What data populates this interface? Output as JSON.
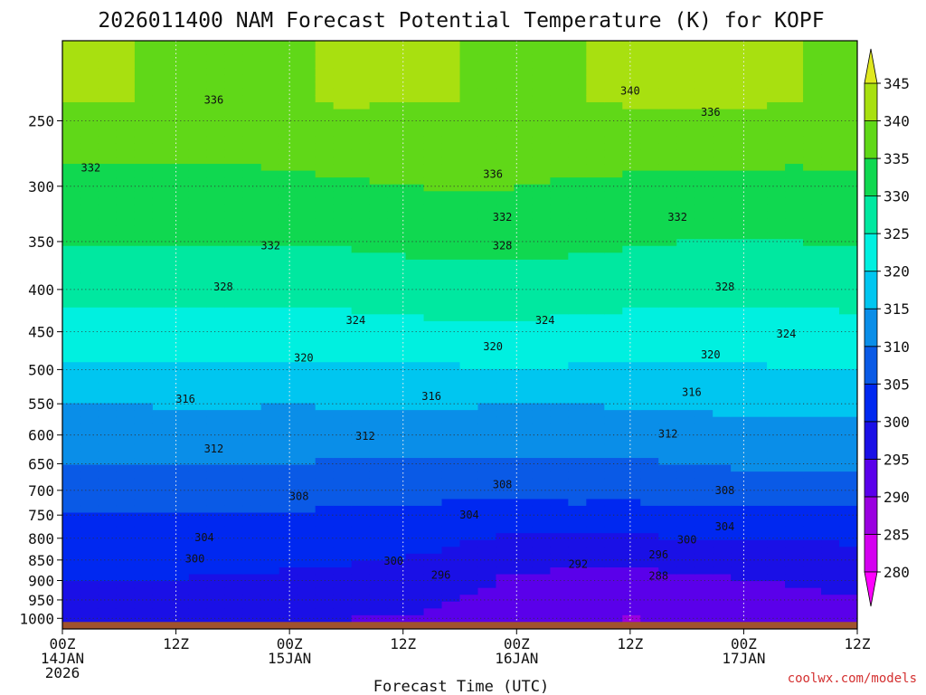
{
  "chart_data": {
    "type": "heatmap",
    "title": "2026011400 NAM Forecast Potential Temperature (K) for KOPF",
    "xlabel": "Forecast Time (UTC)",
    "ylabel": "",
    "variable": "Potential Temperature (K)",
    "y_axis": {
      "units": "hPa",
      "range": [
        1030,
        200
      ],
      "ticks": [
        250,
        300,
        350,
        400,
        450,
        500,
        550,
        600,
        650,
        700,
        750,
        800,
        850,
        900,
        950,
        1000
      ],
      "tick_labels": [
        "250",
        "300",
        "350",
        "400",
        "450",
        "500",
        "550",
        "600",
        "650",
        "700",
        "750",
        "800",
        "850",
        "900",
        "950",
        "1000"
      ]
    },
    "x_axis": {
      "units": "forecast hours",
      "range": [
        0,
        84
      ],
      "ticks": [
        0,
        12,
        24,
        36,
        48,
        60,
        72,
        84
      ],
      "tick_labels": [
        {
          "hour": 0,
          "lines": [
            "00Z",
            "14JAN",
            "2026"
          ]
        },
        {
          "hour": 12,
          "lines": [
            "12Z"
          ]
        },
        {
          "hour": 24,
          "lines": [
            "00Z",
            "15JAN"
          ]
        },
        {
          "hour": 36,
          "lines": [
            "12Z"
          ]
        },
        {
          "hour": 48,
          "lines": [
            "00Z",
            "16JAN"
          ]
        },
        {
          "hour": 60,
          "lines": [
            "12Z"
          ]
        },
        {
          "hour": 72,
          "lines": [
            "00Z",
            "17JAN"
          ]
        },
        {
          "hour": 84,
          "lines": [
            "12Z"
          ]
        }
      ]
    },
    "grid": true,
    "colorbar": {
      "levels": [
        280,
        285,
        290,
        295,
        300,
        305,
        310,
        315,
        320,
        325,
        330,
        335,
        340,
        345
      ],
      "tick_labels": [
        "280",
        "285",
        "290",
        "295",
        "300",
        "305",
        "310",
        "315",
        "320",
        "325",
        "330",
        "335",
        "340",
        "345"
      ],
      "band_colors": [
        "#ff00ff",
        "#d400f0",
        "#9a00e0",
        "#5a00ea",
        "#1a10e6",
        "#0028f0",
        "#0a5ae6",
        "#0a8ee8",
        "#00c6f0",
        "#00f0e0",
        "#00e8a0",
        "#10d850",
        "#60d818",
        "#a8e010",
        "#e0e820"
      ],
      "extend": "both"
    },
    "profile": {
      "pressure_levels": [
        1000,
        950,
        900,
        850,
        800,
        750,
        700,
        650,
        600,
        550,
        500,
        450,
        400,
        350,
        300,
        250
      ],
      "hours": [
        0,
        6,
        12,
        18,
        24,
        30,
        36,
        42,
        48,
        54,
        60,
        66,
        72,
        78,
        84
      ],
      "theta_K": [
        [
          297.5,
          297.0,
          296.5,
          296.0,
          295.5,
          295.0,
          295.0,
          294.0,
          292.5,
          291.5,
          290.0,
          290.5,
          291.5,
          293.0,
          294.0
        ],
        [
          298.5,
          298.5,
          298.0,
          297.5,
          297.0,
          296.5,
          296.0,
          295.0,
          293.0,
          292.0,
          291.0,
          291.5,
          292.5,
          294.0,
          295.0
        ],
        [
          300.0,
          300.0,
          300.0,
          299.5,
          299.0,
          298.5,
          298.0,
          296.5,
          294.0,
          293.5,
          293.0,
          294.0,
          295.0,
          295.5,
          296.0
        ],
        [
          301.0,
          301.0,
          301.0,
          301.0,
          301.0,
          300.5,
          300.0,
          298.5,
          296.5,
          296.5,
          296.5,
          297.0,
          297.5,
          298.0,
          298.5
        ],
        [
          303.0,
          303.0,
          303.0,
          303.0,
          303.0,
          302.5,
          302.0,
          300.5,
          299.0,
          299.0,
          299.5,
          300.0,
          300.0,
          300.5,
          300.5
        ],
        [
          305.0,
          305.0,
          305.0,
          305.0,
          304.5,
          304.0,
          304.0,
          303.5,
          302.5,
          303.0,
          303.0,
          303.5,
          303.5,
          304.0,
          304.0
        ],
        [
          307.5,
          307.5,
          307.5,
          307.5,
          307.5,
          307.0,
          306.5,
          306.0,
          306.5,
          307.0,
          306.5,
          307.5,
          308.0,
          308.0,
          308.0
        ],
        [
          310.5,
          310.5,
          310.5,
          310.5,
          310.0,
          309.5,
          309.5,
          309.0,
          309.5,
          309.5,
          309.5,
          310.0,
          310.5,
          311.0,
          311.0
        ],
        [
          312.5,
          312.5,
          312.5,
          312.5,
          312.0,
          312.0,
          312.0,
          312.0,
          312.5,
          312.0,
          312.5,
          312.5,
          313.0,
          313.0,
          313.0
        ],
        [
          315.0,
          315.0,
          315.5,
          315.5,
          315.0,
          315.5,
          315.5,
          315.5,
          315.0,
          315.0,
          315.5,
          316.0,
          316.0,
          316.0,
          316.0
        ],
        [
          319.0,
          319.0,
          319.0,
          319.0,
          319.0,
          319.0,
          319.0,
          319.5,
          320.0,
          319.5,
          319.5,
          319.5,
          319.5,
          320.0,
          320.0
        ],
        [
          323.0,
          323.0,
          323.0,
          323.0,
          323.0,
          323.0,
          323.5,
          324.0,
          324.0,
          323.5,
          323.0,
          322.5,
          322.5,
          323.0,
          323.5
        ],
        [
          327.0,
          327.0,
          327.0,
          327.0,
          327.0,
          327.0,
          327.5,
          328.0,
          328.0,
          327.5,
          327.0,
          326.5,
          326.5,
          326.5,
          327.0
        ],
        [
          330.5,
          330.5,
          330.5,
          330.5,
          330.5,
          330.5,
          331.0,
          331.5,
          331.5,
          331.0,
          330.5,
          330.0,
          330.0,
          330.0,
          330.5
        ],
        [
          333.0,
          333.0,
          333.5,
          333.5,
          334.0,
          334.5,
          335.0,
          335.5,
          335.0,
          334.5,
          334.0,
          333.5,
          333.5,
          333.5,
          334.0
        ],
        [
          338.5,
          338.5,
          338.0,
          338.0,
          338.5,
          339.0,
          339.0,
          339.0,
          338.5,
          338.5,
          339.0,
          339.0,
          339.0,
          338.5,
          338.5
        ]
      ]
    },
    "contour_labels": [
      {
        "text": "336",
        "hour": 16.0,
        "hPa": 236
      },
      {
        "text": "340",
        "hour": 60.0,
        "hPa": 230
      },
      {
        "text": "336",
        "hour": 68.5,
        "hPa": 244
      },
      {
        "text": "332",
        "hour": 3.0,
        "hPa": 285
      },
      {
        "text": "336",
        "hour": 45.5,
        "hPa": 290
      },
      {
        "text": "332",
        "hour": 46.5,
        "hPa": 327
      },
      {
        "text": "332",
        "hour": 65.0,
        "hPa": 327
      },
      {
        "text": "332",
        "hour": 22.0,
        "hPa": 354
      },
      {
        "text": "328",
        "hour": 46.5,
        "hPa": 354
      },
      {
        "text": "328",
        "hour": 17.0,
        "hPa": 397
      },
      {
        "text": "328",
        "hour": 70.0,
        "hPa": 397
      },
      {
        "text": "324",
        "hour": 31.0,
        "hPa": 436
      },
      {
        "text": "324",
        "hour": 51.0,
        "hPa": 436
      },
      {
        "text": "324",
        "hour": 76.5,
        "hPa": 453
      },
      {
        "text": "320",
        "hour": 25.5,
        "hPa": 484
      },
      {
        "text": "320",
        "hour": 45.5,
        "hPa": 469
      },
      {
        "text": "320",
        "hour": 68.5,
        "hPa": 480
      },
      {
        "text": "316",
        "hour": 13.0,
        "hPa": 543
      },
      {
        "text": "316",
        "hour": 39.0,
        "hPa": 539
      },
      {
        "text": "316",
        "hour": 66.5,
        "hPa": 533
      },
      {
        "text": "312",
        "hour": 32.0,
        "hPa": 602
      },
      {
        "text": "312",
        "hour": 64.0,
        "hPa": 598
      },
      {
        "text": "312",
        "hour": 16.0,
        "hPa": 624
      },
      {
        "text": "308",
        "hour": 46.5,
        "hPa": 689
      },
      {
        "text": "308",
        "hour": 70.0,
        "hPa": 700
      },
      {
        "text": "308",
        "hour": 25.0,
        "hPa": 712
      },
      {
        "text": "304",
        "hour": 43.0,
        "hPa": 750
      },
      {
        "text": "304",
        "hour": 70.0,
        "hPa": 775
      },
      {
        "text": "304",
        "hour": 15.0,
        "hPa": 798
      },
      {
        "text": "300",
        "hour": 66.0,
        "hPa": 803
      },
      {
        "text": "300",
        "hour": 14.0,
        "hPa": 847
      },
      {
        "text": "300",
        "hour": 35.0,
        "hPa": 852
      },
      {
        "text": "296",
        "hour": 63.0,
        "hPa": 838
      },
      {
        "text": "292",
        "hour": 54.5,
        "hPa": 860
      },
      {
        "text": "296",
        "hour": 40.0,
        "hPa": 886
      },
      {
        "text": "288",
        "hour": 63.0,
        "hPa": 889
      }
    ],
    "ground_color": "#a0522d"
  },
  "credit": "coolwx.com/models"
}
